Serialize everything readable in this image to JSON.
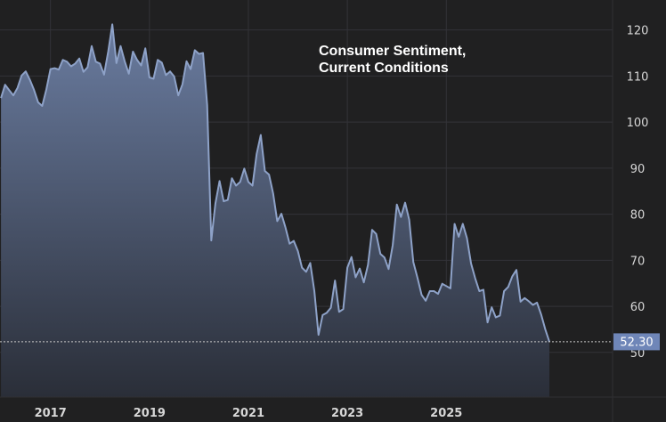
{
  "colors": {
    "background": "#202021",
    "grid": "#333338",
    "line": "#8ea2c8",
    "fill_top": "#6a7ca0",
    "fill_bottom": "#2a2e38",
    "last_value_badge": "#6f86b8",
    "dotted_line": "#c8c8c8",
    "text": "#d7d7d7"
  },
  "chart_data": {
    "type": "area",
    "title_lines": [
      "Consumer Sentiment,",
      "Current Conditions"
    ],
    "xlabel": "",
    "ylabel": "",
    "xlim": [
      2015.98,
      2028.36
    ],
    "ylim": [
      40.3,
      126.5
    ],
    "grid": true,
    "x_ticks": [
      2017,
      2019,
      2021,
      2023,
      2025
    ],
    "x_tick_labels": [
      "2017",
      "2019",
      "2021",
      "2023",
      "2025"
    ],
    "y_ticks": [
      50,
      60,
      70,
      80,
      90,
      100,
      110,
      120
    ],
    "y_tick_labels": [
      "50",
      "60",
      "70",
      "80",
      "90",
      "100",
      "110",
      "120"
    ],
    "last_value": 52.3,
    "last_value_label": "52.30",
    "series": [
      {
        "name": "Consumer Sentiment, Current Conditions",
        "x": [
          2016.0,
          2016.083,
          2016.167,
          2016.25,
          2016.333,
          2016.417,
          2016.5,
          2016.583,
          2016.667,
          2016.75,
          2016.833,
          2016.917,
          2017.0,
          2017.083,
          2017.167,
          2017.25,
          2017.333,
          2017.417,
          2017.5,
          2017.583,
          2017.667,
          2017.75,
          2017.833,
          2017.917,
          2018.0,
          2018.083,
          2018.167,
          2018.25,
          2018.333,
          2018.417,
          2018.5,
          2018.583,
          2018.667,
          2018.75,
          2018.833,
          2018.917,
          2019.0,
          2019.083,
          2019.167,
          2019.25,
          2019.333,
          2019.417,
          2019.5,
          2019.583,
          2019.667,
          2019.75,
          2019.833,
          2019.917,
          2020.0,
          2020.083,
          2020.167,
          2020.25,
          2020.333,
          2020.417,
          2020.5,
          2020.583,
          2020.667,
          2020.75,
          2020.833,
          2020.917,
          2021.0,
          2021.083,
          2021.167,
          2021.25,
          2021.333,
          2021.417,
          2021.5,
          2021.583,
          2021.667,
          2021.75,
          2021.833,
          2021.917,
          2022.0,
          2022.083,
          2022.167,
          2022.25,
          2022.333,
          2022.417,
          2022.5,
          2022.583,
          2022.667,
          2022.75,
          2022.833,
          2022.917,
          2023.0,
          2023.083,
          2023.167,
          2023.25,
          2023.333,
          2023.417,
          2023.5,
          2023.583,
          2023.667,
          2023.75,
          2023.833,
          2023.917,
          2024.0,
          2024.083,
          2024.167,
          2024.25,
          2024.333,
          2024.417,
          2024.5,
          2024.583,
          2024.667,
          2024.75,
          2024.833,
          2024.917,
          2025.0,
          2025.083,
          2025.167,
          2025.25,
          2025.333,
          2025.417,
          2025.5,
          2025.583,
          2025.667,
          2025.75,
          2025.833,
          2025.917,
          2026.0,
          2026.083,
          2026.167,
          2026.25,
          2026.333,
          2026.417,
          2026.5
        ],
        "values": [
          105.2,
          108.1,
          106.9,
          105.8,
          107.4,
          110.1,
          111.0,
          109.2,
          107.0,
          104.3,
          103.5,
          107.1,
          111.5,
          111.7,
          111.4,
          113.5,
          113.1,
          112.1,
          112.7,
          113.8,
          110.9,
          111.9,
          116.5,
          113.1,
          112.7,
          110.3,
          115.3,
          121.2,
          112.8,
          116.5,
          113.2,
          110.5,
          115.3,
          113.5,
          112.3,
          116.0,
          109.7,
          109.4,
          113.5,
          112.9,
          110.2,
          111.0,
          109.9,
          105.8,
          108.2,
          113.2,
          111.5,
          115.6,
          114.8,
          115.0,
          103.7,
          74.3,
          82.3,
          87.2,
          82.8,
          83.1,
          87.8,
          86.2,
          87.0,
          89.9,
          87.0,
          86.2,
          93.1,
          97.2,
          89.4,
          88.6,
          84.5,
          78.5,
          80.1,
          77.1,
          73.6,
          74.2,
          72.0,
          68.4,
          67.5,
          69.4,
          63.3,
          53.8,
          58.1,
          58.6,
          59.7,
          65.6,
          58.8,
          59.4,
          68.4,
          70.7,
          66.3,
          68.2,
          65.2,
          69.0,
          76.6,
          75.7,
          71.4,
          70.6,
          68.1,
          73.3,
          82.1,
          79.4,
          82.5,
          78.8,
          69.6,
          66.2,
          62.5,
          61.2,
          63.3,
          63.3,
          62.7,
          64.9,
          64.4,
          63.9,
          77.9,
          75.1,
          77.9,
          74.8,
          69.3,
          66.1,
          63.3,
          63.6,
          56.5,
          59.8,
          57.6,
          58.0,
          63.3,
          64.2,
          66.5,
          67.9,
          61.0
        ]
      }
    ],
    "tail": {
      "x": [
        2026.583,
        2026.667,
        2026.75,
        2026.833,
        2026.917,
        2027.0,
        2027.083
      ],
      "values": [
        61.8,
        61.1,
        60.3,
        60.8,
        58.2,
        55.0,
        52.3
      ]
    }
  }
}
